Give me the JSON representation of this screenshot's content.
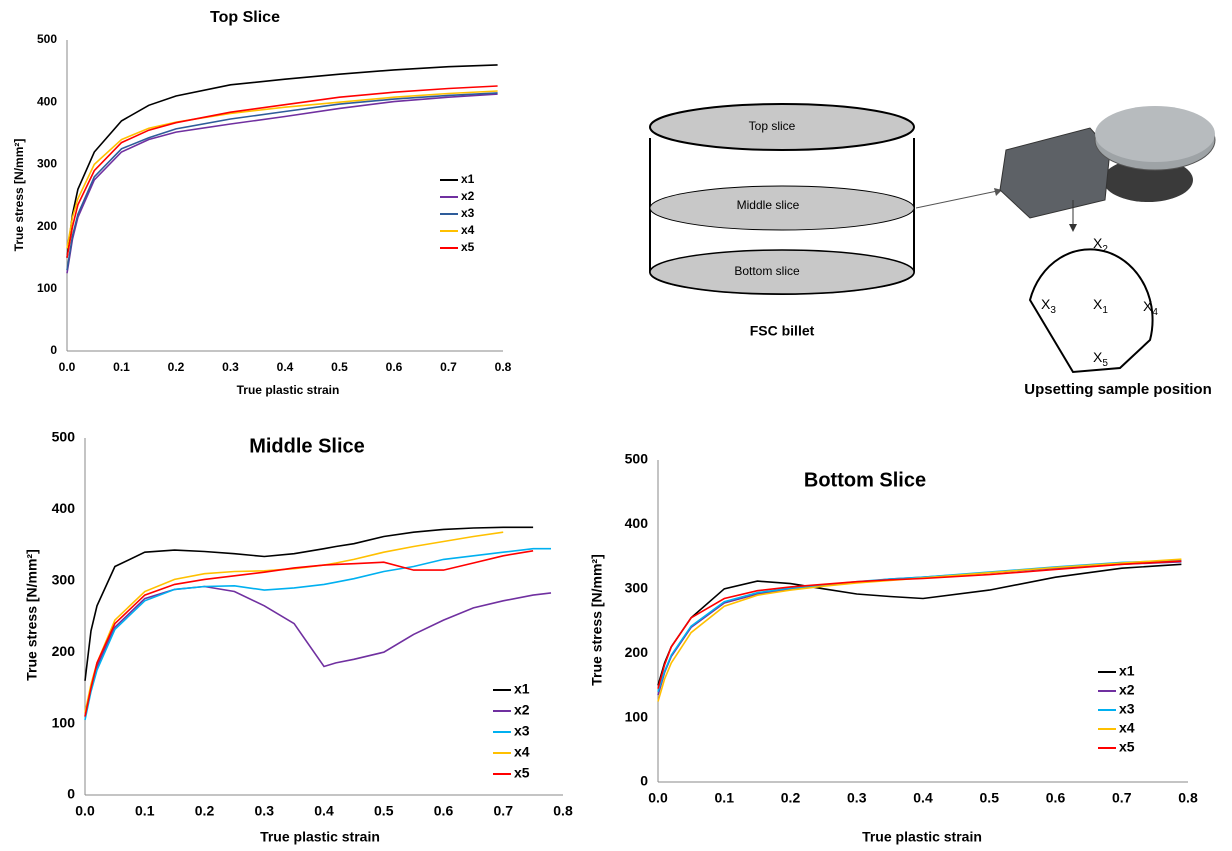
{
  "chart_data": [
    {
      "type": "line",
      "title": "Top Slice",
      "x_label": "True plastic strain",
      "y_label": "True stress [N/mm²]",
      "x": [
        0,
        0.01,
        0.02,
        0.05,
        0.1,
        0.15,
        0.2,
        0.3,
        0.4,
        0.5,
        0.6,
        0.7,
        0.79
      ],
      "series": [
        {
          "name": "x1",
          "color": "#000000",
          "values": [
            150,
            220,
            260,
            320,
            370,
            395,
            410,
            428,
            437,
            445,
            452,
            457,
            460
          ]
        },
        {
          "name": "x2",
          "color": "#7030a0",
          "values": [
            125,
            180,
            215,
            275,
            320,
            340,
            352,
            365,
            377,
            390,
            401,
            408,
            413
          ]
        },
        {
          "name": "x3",
          "color": "#2e5c9a",
          "values": [
            130,
            185,
            220,
            280,
            325,
            343,
            357,
            373,
            385,
            397,
            405,
            411,
            415
          ]
        },
        {
          "name": "x4",
          "color": "#ffc000",
          "values": [
            165,
            215,
            245,
            300,
            340,
            358,
            368,
            382,
            392,
            400,
            408,
            414,
            418
          ]
        },
        {
          "name": "x5",
          "color": "#ff0000",
          "values": [
            150,
            200,
            235,
            290,
            335,
            355,
            367,
            384,
            396,
            408,
            416,
            422,
            426
          ]
        }
      ],
      "xlim": [
        0,
        0.8
      ],
      "xticks": [
        {
          "value": 0,
          "label": "0.0"
        },
        0.1,
        0.2,
        0.3,
        0.4,
        0.5,
        0.6,
        0.7,
        0.8
      ],
      "ylim": [
        0,
        500
      ],
      "yticks": [
        0,
        100,
        200,
        300,
        400,
        500
      ],
      "grid": false
    },
    {
      "type": "line",
      "title": "Middle Slice",
      "x_label": "True plastic strain",
      "y_label": "True stress [N/mm²]",
      "x": [
        0,
        0.01,
        0.02,
        0.05,
        0.1,
        0.15,
        0.2,
        0.25,
        0.3,
        0.35,
        0.4,
        0.42,
        0.45,
        0.5,
        0.55,
        0.6,
        0.65,
        0.7,
        0.75,
        0.78
      ],
      "series": [
        {
          "name": "x1",
          "color": "#000000",
          "values": [
            160,
            230,
            265,
            320,
            340,
            343,
            341,
            338,
            334,
            338,
            345,
            348,
            352,
            362,
            368,
            372,
            374,
            375,
            375,
            null
          ]
        },
        {
          "name": "x2",
          "color": "#7030a0",
          "values": [
            110,
            150,
            180,
            235,
            275,
            288,
            292,
            285,
            265,
            240,
            180,
            185,
            190,
            200,
            225,
            245,
            262,
            272,
            280,
            283
          ]
        },
        {
          "name": "x3",
          "color": "#00b0f0",
          "values": [
            105,
            145,
            175,
            232,
            272,
            288,
            292,
            293,
            287,
            290,
            295,
            298,
            303,
            313,
            320,
            330,
            335,
            340,
            345,
            345
          ]
        },
        {
          "name": "x4",
          "color": "#ffc000",
          "values": [
            115,
            155,
            185,
            245,
            285,
            302,
            310,
            313,
            314,
            317,
            322,
            325,
            330,
            340,
            348,
            355,
            362,
            368,
            null,
            null
          ]
        },
        {
          "name": "x5",
          "color": "#ff0000",
          "values": [
            110,
            150,
            185,
            240,
            280,
            295,
            302,
            307,
            312,
            318,
            322,
            323,
            324,
            326,
            315,
            315,
            325,
            335,
            342,
            null
          ]
        }
      ],
      "xlim": [
        0,
        0.8
      ],
      "xticks": [
        {
          "value": 0,
          "label": "0.0"
        },
        0.1,
        0.2,
        0.3,
        0.4,
        0.5,
        0.6,
        0.7,
        0.8
      ],
      "ylim": [
        0,
        500
      ],
      "yticks": [
        0,
        100,
        200,
        300,
        400,
        500
      ],
      "grid": false
    },
    {
      "type": "line",
      "title": "Bottom Slice",
      "x_label": "True plastic strain",
      "y_label": "True stress [N/mm²]",
      "x": [
        0,
        0.01,
        0.02,
        0.05,
        0.1,
        0.15,
        0.2,
        0.25,
        0.3,
        0.35,
        0.4,
        0.5,
        0.6,
        0.7,
        0.79
      ],
      "series": [
        {
          "name": "x1",
          "color": "#000000",
          "values": [
            150,
            185,
            210,
            255,
            300,
            312,
            308,
            300,
            292,
            288,
            285,
            298,
            318,
            332,
            338
          ]
        },
        {
          "name": "x2",
          "color": "#7030a0",
          "values": [
            135,
            170,
            195,
            240,
            278,
            292,
            300,
            305,
            310,
            315,
            318,
            325,
            332,
            338,
            342
          ]
        },
        {
          "name": "x3",
          "color": "#00b0f0",
          "values": [
            140,
            172,
            197,
            242,
            280,
            294,
            301,
            306,
            311,
            315,
            318,
            326,
            334,
            341,
            344
          ]
        },
        {
          "name": "x4",
          "color": "#ffc000",
          "values": [
            125,
            160,
            185,
            232,
            273,
            290,
            298,
            304,
            309,
            313,
            317,
            325,
            333,
            340,
            346
          ]
        },
        {
          "name": "x5",
          "color": "#ff0000",
          "values": [
            145,
            182,
            210,
            255,
            285,
            297,
            303,
            307,
            311,
            314,
            316,
            322,
            330,
            338,
            343
          ]
        }
      ],
      "xlim": [
        0,
        0.8
      ],
      "xticks": [
        {
          "value": 0,
          "label": "0.0"
        },
        0.1,
        0.2,
        0.3,
        0.4,
        0.5,
        0.6,
        0.7,
        0.8
      ],
      "ylim": [
        0,
        500
      ],
      "yticks": [
        0,
        100,
        200,
        300,
        400,
        500
      ],
      "grid": false
    }
  ],
  "diagram": {
    "slices": [
      "Top slice",
      "Middle slice",
      "Bottom slice"
    ],
    "billet_label": "FSC billet",
    "positions": [
      {
        "letter": "X",
        "sub": "1"
      },
      {
        "letter": "X",
        "sub": "2"
      },
      {
        "letter": "X",
        "sub": "3"
      },
      {
        "letter": "X",
        "sub": "4"
      },
      {
        "letter": "X",
        "sub": "5"
      }
    ],
    "caption": "Upsetting sample position"
  }
}
